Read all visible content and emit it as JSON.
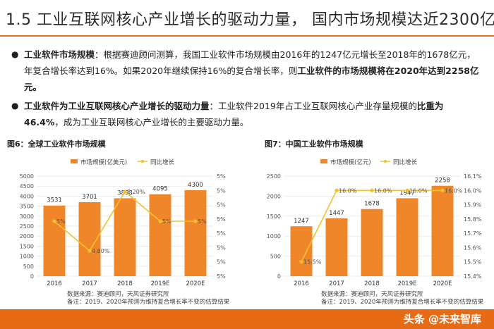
{
  "title": "1.5 工业互联网核心产业增长的驱动力量， 国内市场规模达近2300亿",
  "bullets": [
    {
      "lead": "工业软件市场规模",
      "text1": "：根据赛迪顾问测算，我国工业软件市场规模由2016年的1247亿元增长至2018年的1678亿元，年复合增长率达到16%。如果2020年继续保持16%的复合增长率，则",
      "strong": "工业软件的市场规模将在2020年达到2258亿元。",
      "text2": ""
    },
    {
      "lead": "工业软件为工业互联网核心产业增长的驱动力量",
      "text1": "：工业软件2019年占工业互联网核心产业存量规模的",
      "strong": "比重为46.4%",
      "text2": "，成为工业互联网核心产业增长的主要驱动力量。"
    }
  ],
  "figures": [
    {
      "fig_title": "图6：全球工业软件市场规模",
      "source1": "数据来源：赛迪顾问，天风证券研究所",
      "source2": "备注：2019、2020年预测为维持复合增长率不变的估算结果"
    },
    {
      "fig_title": "图7：中国工业软件市场规模",
      "source1": "数据来源：赛迪顾问，天风证券研究所",
      "source2": "备注：2019、2020年预测为维持复合增长率不变的估算结果"
    }
  ],
  "watermark": "头条 @未来智库",
  "chart_data": [
    {
      "type": "bar",
      "categories": [
        "2016",
        "2017",
        "2018",
        "2019E",
        "2020E"
      ],
      "series": [
        {
          "name": "市场规模(亿美元)",
          "values": [
            3531,
            3701,
            3893,
            4095,
            4300
          ],
          "kind": "bar",
          "color": "#f0862a"
        },
        {
          "name": "同比增长",
          "values": [
            5,
            4.8,
            5.2,
            5,
            5
          ],
          "kind": "line",
          "color": "#f2c12e",
          "labels": [
            "5%",
            "4.80%",
            "5.20%",
            "5%",
            "5%"
          ]
        }
      ],
      "ylim": [
        0,
        5000
      ],
      "yticks": [
        0,
        500,
        1000,
        1500,
        2000,
        2500,
        3000,
        3500,
        4000,
        4500,
        5000
      ],
      "y2ticks": [
        "5%",
        "5%",
        "5%",
        "5%",
        "5%",
        "5%",
        "5%",
        "5%"
      ],
      "legend": [
        "市场规模(亿美元)",
        "同比增长"
      ]
    },
    {
      "type": "bar",
      "categories": [
        "2016",
        "2017",
        "2018",
        "2019E",
        "2020E"
      ],
      "series": [
        {
          "name": "市场规模(亿元)",
          "values": [
            1247,
            1447,
            1678,
            1947,
            2258
          ],
          "kind": "bar",
          "color": "#f0862a"
        },
        {
          "name": "同比增长",
          "values": [
            15.5,
            16,
            16,
            16,
            16
          ],
          "kind": "line",
          "color": "#f2c12e",
          "labels": [
            "15.5%",
            "16.0%",
            "16.0%",
            "16.0%",
            "16.0%"
          ]
        }
      ],
      "ylim": [
        0,
        2500
      ],
      "yticks": [
        0,
        500,
        1000,
        1500,
        2000,
        2500
      ],
      "y2ticks": [
        "15.4%",
        "15.5%",
        "15.6%",
        "15.7%",
        "15.8%",
        "15.9%",
        "16.0%",
        "16.1%"
      ],
      "y2lim": [
        15.4,
        16.1
      ],
      "legend": [
        "市场规模(亿元)",
        "同比增长"
      ]
    }
  ]
}
